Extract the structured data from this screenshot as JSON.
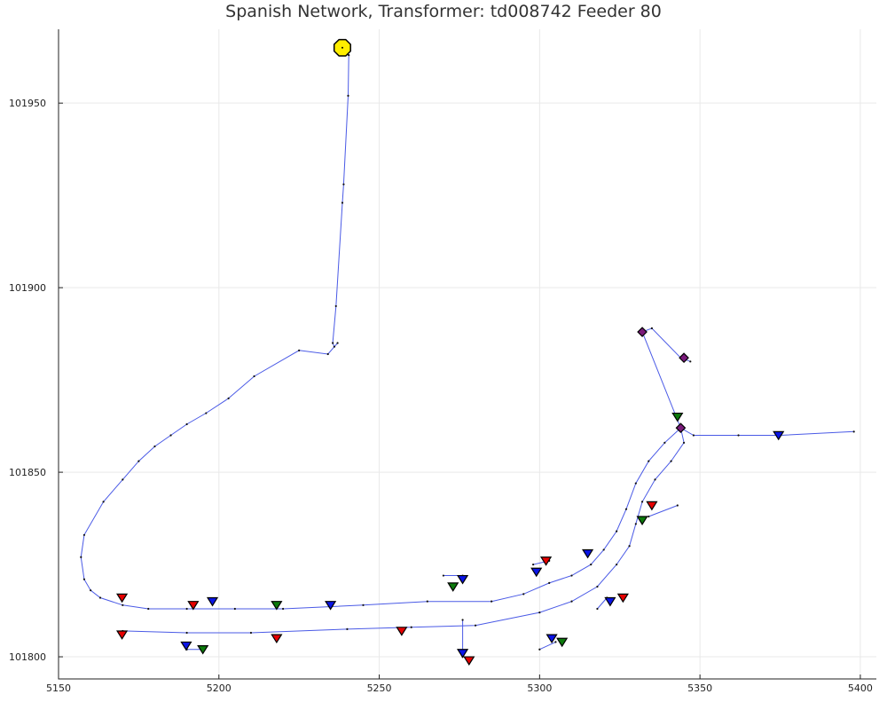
{
  "chart_data": {
    "type": "scatter",
    "title": "Spanish Network, Transformer: td008742 Feeder 80",
    "xlabel": "",
    "ylabel": "",
    "xlim": [
      5150,
      5405
    ],
    "ylim": [
      101794,
      101970
    ],
    "x_ticks": [
      5150,
      5200,
      5250,
      5300,
      5350,
      5400
    ],
    "y_ticks": [
      101800,
      101850,
      101900,
      101950
    ],
    "x_tick_labels": [
      "5150",
      "5200",
      "5250",
      "5300",
      "5350",
      "5400"
    ],
    "y_tick_labels": [
      "101800",
      "101850",
      "101900",
      "101950"
    ],
    "grid": true,
    "colors": {
      "edge": "#4a5ae6",
      "node": "#111111",
      "transformer": "#ffee00",
      "red": "#e60000",
      "blue": "#0a14e6",
      "green": "#0c7a0c",
      "purple": "#7a1a7a"
    },
    "transformer": {
      "x": 5238.5,
      "y": 101965
    },
    "edges": [
      [
        [
          5238.5,
          101965
        ],
        [
          5240.5,
          101963
        ],
        [
          5240.3,
          101952
        ],
        [
          5238.9,
          101928
        ],
        [
          5238.5,
          101923
        ],
        [
          5236.5,
          101895
        ],
        [
          5235.5,
          101885
        ],
        [
          5236,
          101884
        ],
        [
          5237,
          101885
        ],
        [
          5234,
          101882
        ],
        [
          5225,
          101883
        ],
        [
          5211,
          101876
        ],
        [
          5203,
          101870
        ],
        [
          5196,
          101866
        ],
        [
          5190,
          101863
        ],
        [
          5185,
          101860
        ],
        [
          5180,
          101857
        ],
        [
          5175,
          101853
        ],
        [
          5170,
          101848
        ],
        [
          5164,
          101842
        ],
        [
          5158,
          101833
        ],
        [
          5157,
          101827
        ],
        [
          5158,
          101821
        ],
        [
          5160,
          101818
        ],
        [
          5163,
          101816
        ],
        [
          5170,
          101814
        ],
        [
          5178,
          101813
        ],
        [
          5190,
          101813
        ],
        [
          5205,
          101813
        ],
        [
          5220,
          101813
        ],
        [
          5245,
          101814
        ],
        [
          5265,
          101815
        ],
        [
          5285,
          101815
        ],
        [
          5295,
          101817
        ],
        [
          5303,
          101820
        ],
        [
          5310,
          101822
        ],
        [
          5316,
          101825
        ],
        [
          5320,
          101829
        ],
        [
          5324,
          101834
        ],
        [
          5327,
          101840
        ],
        [
          5330,
          101847
        ],
        [
          5334,
          101853
        ],
        [
          5339,
          101858
        ],
        [
          5344,
          101862
        ],
        [
          5348,
          101860
        ],
        [
          5362,
          101860
        ],
        [
          5375,
          101860
        ],
        [
          5398,
          101861
        ]
      ],
      [
        [
          5170,
          101807
        ],
        [
          5190,
          101806.5
        ],
        [
          5210,
          101806.5
        ],
        [
          5240,
          101807.5
        ],
        [
          5260,
          101808
        ],
        [
          5280,
          101808.5
        ],
        [
          5300,
          101812
        ],
        [
          5310,
          101815
        ],
        [
          5318,
          101819
        ],
        [
          5324,
          101825
        ],
        [
          5328,
          101830
        ],
        [
          5330,
          101836
        ],
        [
          5332,
          101842
        ],
        [
          5336,
          101848
        ],
        [
          5341,
          101853
        ],
        [
          5345,
          101858
        ],
        [
          5344,
          101862
        ]
      ],
      [
        [
          5344,
          101862
        ],
        [
          5332,
          101888
        ],
        [
          5335,
          101889
        ],
        [
          5344,
          101881
        ],
        [
          5347,
          101880
        ]
      ],
      [
        [
          5190,
          101802
        ],
        [
          5195,
          101802
        ]
      ],
      [
        [
          5270,
          101822
        ],
        [
          5276,
          101822
        ]
      ],
      [
        [
          5298,
          101825
        ],
        [
          5303,
          101826
        ]
      ],
      [
        [
          5300,
          101802
        ],
        [
          5305,
          101804
        ]
      ],
      [
        [
          5276,
          101810
        ],
        [
          5276,
          101800
        ]
      ],
      [
        [
          5334,
          101838
        ],
        [
          5343,
          101841
        ]
      ],
      [
        [
          5321,
          101816
        ],
        [
          5318,
          101813
        ]
      ]
    ],
    "red_markers": [
      {
        "x": 5169.8,
        "y": 101816
      },
      {
        "x": 5192,
        "y": 101814
      },
      {
        "x": 5169.8,
        "y": 101806
      },
      {
        "x": 5218,
        "y": 101805
      },
      {
        "x": 5257,
        "y": 101807
      },
      {
        "x": 5278,
        "y": 101799
      },
      {
        "x": 5302,
        "y": 101826
      },
      {
        "x": 5326,
        "y": 101816
      },
      {
        "x": 5335,
        "y": 101841
      }
    ],
    "blue_markers": [
      {
        "x": 5198,
        "y": 101815
      },
      {
        "x": 5234.8,
        "y": 101814
      },
      {
        "x": 5189.8,
        "y": 101803
      },
      {
        "x": 5276,
        "y": 101821
      },
      {
        "x": 5299,
        "y": 101823
      },
      {
        "x": 5315,
        "y": 101828
      },
      {
        "x": 5322,
        "y": 101815
      },
      {
        "x": 5303.8,
        "y": 101805
      },
      {
        "x": 5276,
        "y": 101801
      },
      {
        "x": 5374.5,
        "y": 101860
      }
    ],
    "green_markers": [
      {
        "x": 5218,
        "y": 101814
      },
      {
        "x": 5195,
        "y": 101802
      },
      {
        "x": 5273,
        "y": 101819
      },
      {
        "x": 5307,
        "y": 101804
      },
      {
        "x": 5332,
        "y": 101837
      },
      {
        "x": 5343,
        "y": 101865
      }
    ],
    "purple_markers": [
      {
        "x": 5332,
        "y": 101888
      },
      {
        "x": 5345,
        "y": 101881
      },
      {
        "x": 5344,
        "y": 101862
      }
    ]
  }
}
